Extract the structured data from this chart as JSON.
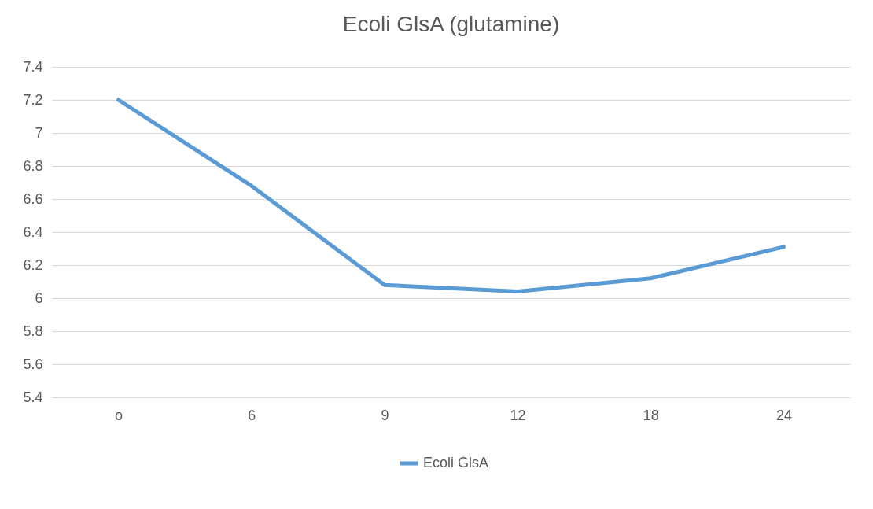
{
  "chart_data": {
    "type": "line",
    "title": "Ecoli GlsA (glutamine)",
    "categories": [
      "o",
      "6",
      "9",
      "12",
      "18",
      "24"
    ],
    "series": [
      {
        "name": "Ecoli GlsA",
        "color": "#5b9bd5",
        "values": [
          7.2,
          6.68,
          6.08,
          6.04,
          6.12,
          6.31
        ]
      }
    ],
    "ylim": [
      5.4,
      7.4
    ],
    "yticks": [
      5.4,
      5.6,
      5.8,
      6,
      6.2,
      6.4,
      6.6,
      6.8,
      7,
      7.2,
      7.4
    ],
    "grid": "y",
    "legend": "bottom",
    "marker": "none",
    "line_style": "solid"
  }
}
